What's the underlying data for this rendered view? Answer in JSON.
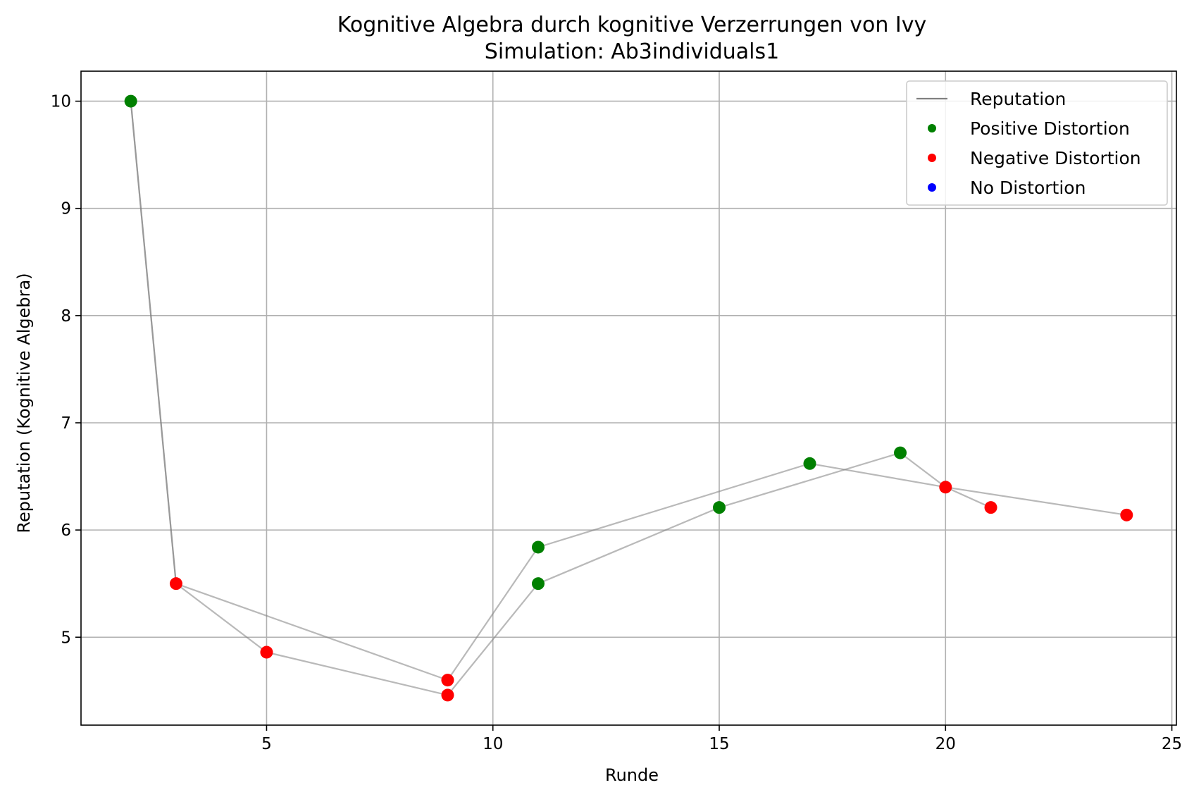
{
  "chart_data": {
    "type": "scatter",
    "title": "Kognitive Algebra durch kognitive Verzerrungen von Ivy",
    "subtitle": "Simulation: Ab3individuals1",
    "xlabel": "Runde",
    "ylabel": "Reputation (Kognitive Algebra)",
    "xlim": [
      0.9,
      25.1
    ],
    "ylim": [
      4.18,
      10.28
    ],
    "xticks": [
      5,
      10,
      15,
      20,
      25
    ],
    "yticks": [
      5,
      6,
      7,
      8,
      9,
      10
    ],
    "grid": true,
    "legend_position": "top-right",
    "line_color": "#808080",
    "series": [
      {
        "name": "Reputation",
        "kind": "line",
        "color": "#808080",
        "x": [
          2,
          3,
          5,
          9,
          11,
          15,
          19,
          20,
          21
        ],
        "y": [
          10.0,
          5.5,
          4.86,
          4.46,
          5.5,
          6.21,
          6.72,
          6.4,
          6.21
        ]
      },
      {
        "name": "Reputation",
        "kind": "line",
        "color": "#808080",
        "x": [
          2,
          3,
          9,
          11,
          17,
          20,
          24
        ],
        "y": [
          10.0,
          5.5,
          4.6,
          5.84,
          6.62,
          6.4,
          6.14
        ]
      }
    ],
    "points": [
      {
        "x": 2,
        "y": 10.0,
        "category": "Positive Distortion"
      },
      {
        "x": 3,
        "y": 5.5,
        "category": "Negative Distortion"
      },
      {
        "x": 5,
        "y": 4.86,
        "category": "Negative Distortion"
      },
      {
        "x": 9,
        "y": 4.6,
        "category": "Negative Distortion"
      },
      {
        "x": 9,
        "y": 4.46,
        "category": "Negative Distortion"
      },
      {
        "x": 11,
        "y": 5.84,
        "category": "Positive Distortion"
      },
      {
        "x": 11,
        "y": 5.5,
        "category": "Positive Distortion"
      },
      {
        "x": 15,
        "y": 6.21,
        "category": "Positive Distortion"
      },
      {
        "x": 17,
        "y": 6.62,
        "category": "Positive Distortion"
      },
      {
        "x": 19,
        "y": 6.72,
        "category": "Positive Distortion"
      },
      {
        "x": 20,
        "y": 6.4,
        "category": "Negative Distortion"
      },
      {
        "x": 21,
        "y": 6.21,
        "category": "Negative Distortion"
      },
      {
        "x": 24,
        "y": 6.14,
        "category": "Negative Distortion"
      }
    ],
    "legend": [
      {
        "label": "Reputation",
        "marker": "line",
        "color": "#808080"
      },
      {
        "label": "Positive Distortion",
        "marker": "dot",
        "color": "#008000"
      },
      {
        "label": "Negative Distortion",
        "marker": "dot",
        "color": "#ff0000"
      },
      {
        "label": "No Distortion",
        "marker": "dot",
        "color": "#0000ff"
      }
    ],
    "category_colors": {
      "Positive Distortion": "#008000",
      "Negative Distortion": "#ff0000",
      "No Distortion": "#0000ff"
    }
  }
}
